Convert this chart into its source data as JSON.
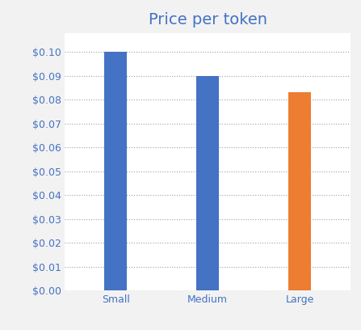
{
  "categories": [
    "Small",
    "Medium",
    "Large"
  ],
  "values": [
    0.1,
    0.09,
    0.083
  ],
  "bar_colors": [
    "#4472C4",
    "#4472C4",
    "#ED7D31"
  ],
  "title": "Price per token",
  "title_color": "#4472C4",
  "title_fontsize": 14,
  "ylim": [
    0,
    0.108
  ],
  "yticks": [
    0.0,
    0.01,
    0.02,
    0.03,
    0.04,
    0.05,
    0.06,
    0.07,
    0.08,
    0.09,
    0.1
  ],
  "background_color": "#f2f2f2",
  "plot_bg_color": "#ffffff",
  "grid_color": "#a0a0a0",
  "tick_color": "#4472C4",
  "bar_width": 0.25,
  "figsize": [
    4.47,
    4.08
  ],
  "dpi": 100
}
